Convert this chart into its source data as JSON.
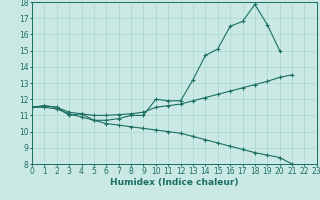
{
  "xlabel": "Humidex (Indice chaleur)",
  "bg_color": "#cbe9e4",
  "grid_color": "#a8d8d0",
  "line_color": "#1a6e62",
  "x_min": 0,
  "x_max": 23,
  "y_min": 8,
  "y_max": 18,
  "line1_x": [
    0,
    1,
    2,
    3,
    4,
    5,
    6,
    7,
    8,
    9,
    10,
    11,
    12,
    13,
    14,
    15,
    16,
    17,
    18,
    19,
    20,
    21,
    22,
    23
  ],
  "line1_y": [
    11.5,
    11.6,
    11.5,
    11.0,
    11.1,
    10.7,
    10.7,
    10.8,
    11.0,
    11.0,
    12.0,
    11.9,
    11.9,
    13.2,
    14.7,
    15.1,
    16.5,
    16.8,
    17.85,
    16.6,
    15.0,
    null,
    null,
    null
  ],
  "line2_x": [
    0,
    1,
    2,
    3,
    4,
    5,
    6,
    7,
    8,
    9,
    10,
    11,
    12,
    13,
    14,
    15,
    16,
    17,
    18,
    19,
    20,
    21
  ],
  "line2_y": [
    11.5,
    11.6,
    11.5,
    11.2,
    11.1,
    11.0,
    11.0,
    11.05,
    11.1,
    11.2,
    11.5,
    11.6,
    11.7,
    11.9,
    12.1,
    12.3,
    12.5,
    12.7,
    12.9,
    13.1,
    13.35,
    13.5
  ],
  "line3_x": [
    0,
    1,
    2,
    3,
    4,
    5,
    6,
    7,
    8,
    9,
    10,
    11,
    12,
    13,
    14,
    15,
    16,
    17,
    18,
    19,
    20,
    21,
    22,
    23
  ],
  "line3_y": [
    11.5,
    11.5,
    11.4,
    11.1,
    10.9,
    10.7,
    10.5,
    10.4,
    10.3,
    10.2,
    10.1,
    10.0,
    9.9,
    9.7,
    9.5,
    9.3,
    9.1,
    8.9,
    8.7,
    8.55,
    8.4,
    8.0,
    null,
    null
  ],
  "tick_fontsize": 5.5,
  "label_fontsize": 6.5
}
